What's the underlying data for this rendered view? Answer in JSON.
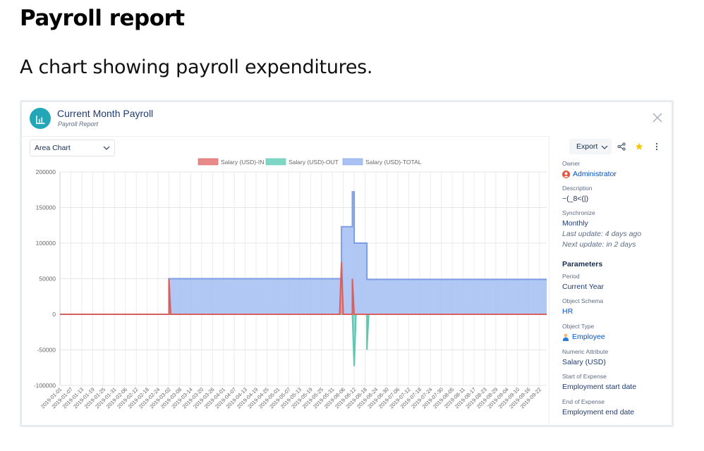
{
  "page": {
    "title": "Payroll report",
    "subtitle": "A chart showing payroll expenditures."
  },
  "card": {
    "title": "Current Month Payroll",
    "subtitle": "Payroll Report",
    "chart_type_select": "Area Chart",
    "export_label": "Export"
  },
  "side": {
    "owner_label": "Owner",
    "owner_value": "Administrator",
    "description_label": "Description",
    "description_value": "~(_8<(|)",
    "synchronize_label": "Synchronize",
    "synchronize_value": "Monthly",
    "last_update": "Last update: 4 days ago",
    "next_update": "Next update: in 2 days",
    "parameters_heading": "Parameters",
    "period_label": "Period",
    "period_value": "Current Year",
    "object_schema_label": "Object Schema",
    "object_schema_value": "HR",
    "object_type_label": "Object Type",
    "object_type_value": "Employee",
    "numeric_attr_label": "Numeric Attribute",
    "numeric_attr_value": "Salary (USD)",
    "start_label": "Start of Expense",
    "start_value": "Employment start date",
    "end_label": "End of Expense",
    "end_value": "Employment end date"
  },
  "colors": {
    "in": "#e88a8a",
    "out": "#7ed6c4",
    "total": "#a9c1f3",
    "total_line": "#7d9de6",
    "accent": "#22a6b8"
  },
  "chart_data": {
    "type": "area",
    "title": "",
    "ylim": [
      -100000,
      200000
    ],
    "yticks": [
      200000,
      150000,
      100000,
      50000,
      0,
      -50000,
      -100000
    ],
    "x_tick_labels": [
      "2019-01-01",
      "2019-01-07",
      "2019-01-13",
      "2019-01-19",
      "2019-01-25",
      "2019-01-31",
      "2019-02-06",
      "2019-02-12",
      "2019-02-18",
      "2019-02-24",
      "2019-03-02",
      "2019-03-08",
      "2019-03-14",
      "2019-03-20",
      "2019-03-26",
      "2019-04-01",
      "2019-04-07",
      "2019-04-13",
      "2019-04-19",
      "2019-04-25",
      "2019-05-01",
      "2019-05-07",
      "2019-05-13",
      "2019-05-19",
      "2019-05-25",
      "2019-05-31",
      "2019-06-06",
      "2019-06-12",
      "2019-06-18",
      "2019-06-24",
      "2019-06-30",
      "2019-07-06",
      "2019-07-12",
      "2019-07-18",
      "2019-07-24",
      "2019-07-30",
      "2019-08-05",
      "2019-08-11",
      "2019-08-17",
      "2019-08-23",
      "2019-08-29",
      "2019-09-04",
      "2019-09-10",
      "2019-09-16",
      "2019-09-22"
    ],
    "x_max": 268,
    "legend": [
      "Salary (USD)-IN",
      "Salary (USD)-OUT",
      "Salary (USD)-TOTAL"
    ],
    "legend_position": "top",
    "grid": true,
    "series": [
      {
        "name": "Salary (USD)-TOTAL",
        "points": [
          [
            0,
            0
          ],
          [
            60,
            0
          ],
          [
            60,
            50000
          ],
          [
            155,
            50000
          ],
          [
            155,
            123000
          ],
          [
            161,
            123000
          ],
          [
            161,
            172000
          ],
          [
            162,
            172000
          ],
          [
            162,
            100000
          ],
          [
            169,
            100000
          ],
          [
            169,
            49000
          ],
          [
            268,
            49000
          ]
        ]
      },
      {
        "name": "Salary (USD)-IN",
        "points": [
          [
            0,
            0
          ],
          [
            60,
            0
          ],
          [
            60,
            50000
          ],
          [
            61,
            0
          ],
          [
            154,
            0
          ],
          [
            155,
            73000
          ],
          [
            156,
            0
          ],
          [
            161,
            0
          ],
          [
            161,
            50000
          ],
          [
            162,
            0
          ],
          [
            268,
            0
          ]
        ]
      },
      {
        "name": "Salary (USD)-OUT",
        "points": [
          [
            0,
            0
          ],
          [
            161,
            0
          ],
          [
            162,
            -73000
          ],
          [
            163,
            0
          ],
          [
            169,
            0
          ],
          [
            169,
            -50000
          ],
          [
            170,
            0
          ],
          [
            268,
            0
          ]
        ]
      }
    ]
  }
}
